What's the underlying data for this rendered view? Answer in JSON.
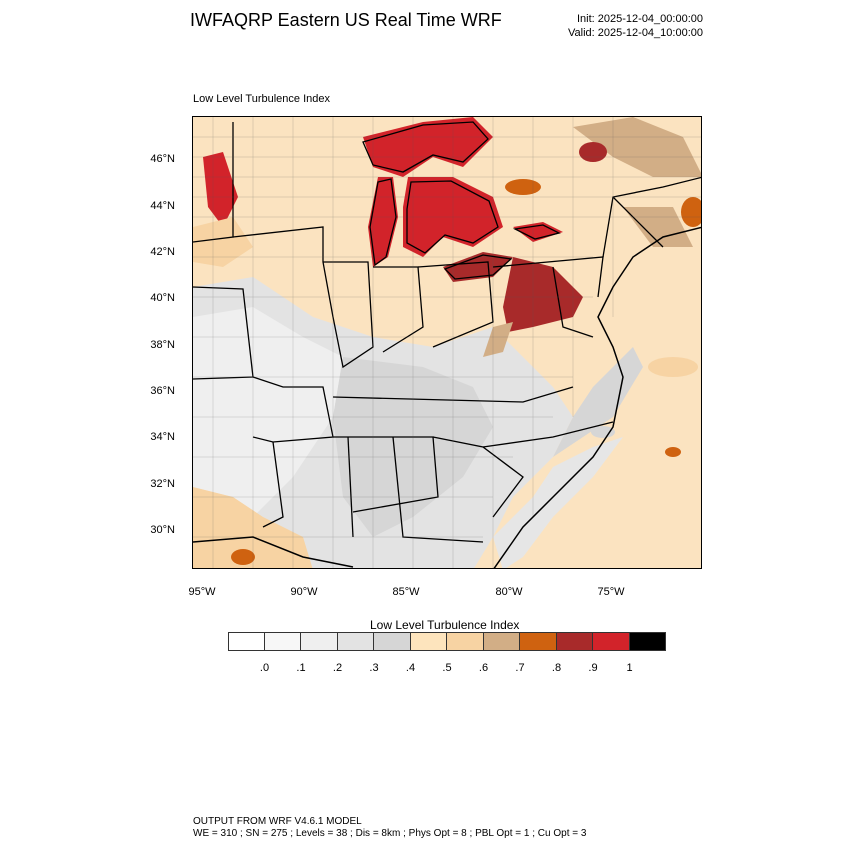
{
  "header": {
    "title": "IWFAQRP Eastern US Real Time WRF",
    "init": "Init: 2025-12-04_00:00:00",
    "valid": "Valid: 2025-12-04_10:00:00"
  },
  "map": {
    "subtitle": "Low Level Turbulence Index",
    "lat_labels": [
      "46°N",
      "44°N",
      "42°N",
      "40°N",
      "38°N",
      "36°N",
      "34°N",
      "32°N",
      "30°N"
    ],
    "lon_labels": [
      "95°W",
      "90°W",
      "85°W",
      "80°W",
      "75°W"
    ]
  },
  "colorbar": {
    "title": "Low Level Turbulence Index",
    "colors": [
      "#ffffff",
      "#f7f7f7",
      "#efefef",
      "#e3e3e3",
      "#d6d6d6",
      "#fde4bd",
      "#f7d3a3",
      "#d2ae86",
      "#cf6210",
      "#a82a2a",
      "#d2232a",
      "#000000"
    ],
    "labels": [
      ".0",
      ".1",
      ".2",
      ".3",
      ".4",
      ".5",
      ".6",
      ".7",
      ".8",
      ".9",
      "1"
    ]
  },
  "footer": {
    "line1": "OUTPUT FROM WRF V4.6.1 MODEL",
    "line2": "WE = 310 ; SN = 275 ; Levels = 38 ; Dis = 8km ; Phys Opt = 8 ; PBL Opt = 1 ; Cu Opt = 3"
  }
}
